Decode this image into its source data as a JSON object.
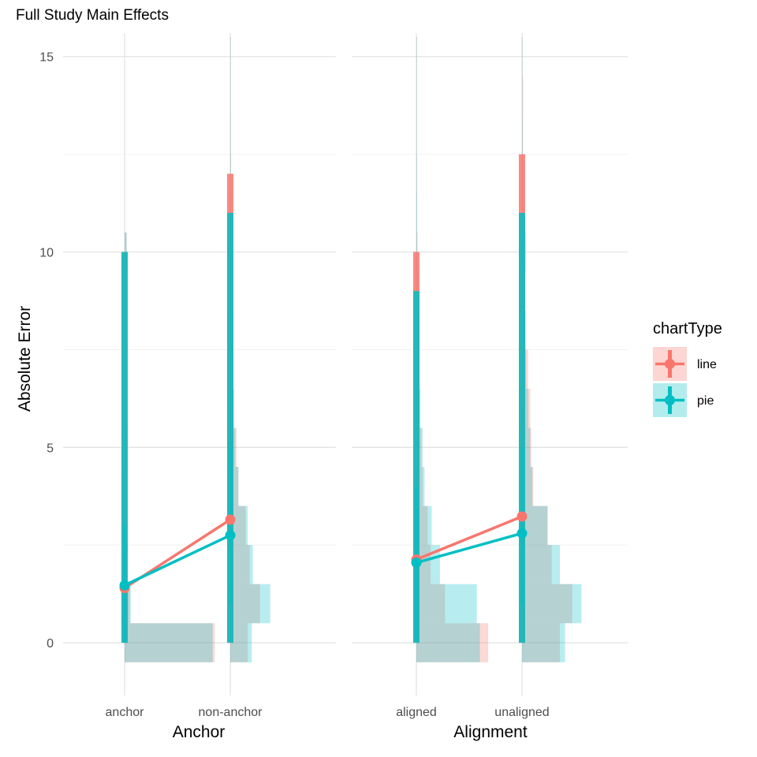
{
  "chart_data": {
    "type": "line",
    "title": "Full Study Main Effects",
    "ylabel": "Absolute Error",
    "ylim": [
      -1.35,
      15.6
    ],
    "yticks": [
      0,
      5,
      10,
      15
    ],
    "legend": {
      "title": "chartType",
      "placement": "right",
      "entries": [
        {
          "label": "line",
          "color": "#F8766D"
        },
        {
          "label": "pie",
          "color": "#00BFC4"
        }
      ]
    },
    "series": [
      {
        "name": "line",
        "color": "#F8766D"
      },
      {
        "name": "pie",
        "color": "#00BFC4"
      }
    ],
    "grid": true,
    "panels": [
      {
        "xlabel": "Anchor",
        "categories": [
          "anchor",
          "non-anchor"
        ],
        "means": {
          "line": [
            1.4,
            3.15
          ],
          "pie": [
            1.47,
            2.75
          ]
        },
        "intervals": {
          "line": [
            {
              "outer": [
                0,
                10
              ],
              "inner": [
                0,
                3
              ]
            },
            {
              "outer": [
                0,
                12
              ],
              "inner": [
                1,
                6
              ]
            }
          ],
          "pie": [
            {
              "outer": [
                0,
                10
              ],
              "inner": [
                0,
                3
              ]
            },
            {
              "outer": [
                0,
                11
              ],
              "inner": [
                1,
                5
              ]
            }
          ]
        },
        "histograms": {
          "bin_centers": [
            0,
            1,
            2,
            3,
            4,
            5,
            6,
            7,
            8,
            9,
            10,
            11,
            12,
            13,
            14,
            15
          ],
          "line": [
            [
              0.88,
              0.05,
              0.02,
              0.01,
              0.005,
              0.015,
              0,
              0,
              0,
              0,
              0.02,
              0,
              0,
              0,
              0,
              0
            ],
            [
              0.17,
              0.29,
              0.19,
              0.15,
              0.08,
              0.06,
              0.04,
              0.03,
              0.02,
              0.015,
              0.015,
              0.01,
              0.008,
              0.006,
              0.004,
              0.002
            ]
          ],
          "pie": [
            [
              0.86,
              0.06,
              0.03,
              0.01,
              0.005,
              0.015,
              0,
              0,
              0,
              0,
              0.02,
              0,
              0,
              0,
              0,
              0
            ],
            [
              0.21,
              0.39,
              0.22,
              0.17,
              0.08,
              0.05,
              0.03,
              0.02,
              0.015,
              0.01,
              0.01,
              0.008,
              0.006,
              0.004,
              0.003,
              0.002
            ]
          ]
        }
      },
      {
        "xlabel": "Alignment",
        "categories": [
          "aligned",
          "unaligned"
        ],
        "means": {
          "line": [
            2.13,
            3.23
          ],
          "pie": [
            2.05,
            2.8
          ]
        },
        "intervals": {
          "line": [
            {
              "outer": [
                0,
                10
              ],
              "inner": [
                0,
                4
              ]
            },
            {
              "outer": [
                0,
                12.5
              ],
              "inner": [
                1,
                6
              ]
            }
          ],
          "pie": [
            {
              "outer": [
                0,
                9
              ],
              "inner": [
                0,
                4
              ]
            },
            {
              "outer": [
                0,
                11
              ],
              "inner": [
                1,
                5
              ]
            }
          ]
        },
        "histograms": {
          "bin_centers": [
            0,
            1,
            2,
            3,
            4,
            5,
            6,
            7,
            8,
            9,
            10,
            11,
            12,
            13,
            14,
            15
          ],
          "line": [
            [
              0.7,
              0.28,
              0.14,
              0.11,
              0.06,
              0.05,
              0.03,
              0.02,
              0.03,
              0.01,
              0.01,
              0.005,
              0.005,
              0.005,
              0.005,
              0.005
            ],
            [
              0.37,
              0.49,
              0.29,
              0.25,
              0.11,
              0.09,
              0.08,
              0.06,
              0.04,
              0.03,
              0.04,
              0.02,
              0.015,
              0.01,
              0.01,
              0.005
            ]
          ],
          "pie": [
            [
              0.62,
              0.59,
              0.23,
              0.15,
              0.08,
              0.06,
              0.04,
              0.03,
              0.025,
              0.015,
              0.01,
              0.008,
              0.006,
              0.004,
              0.003,
              0.002
            ],
            [
              0.42,
              0.58,
              0.37,
              0.25,
              0.1,
              0.08,
              0.06,
              0.04,
              0.03,
              0.02,
              0.015,
              0.01,
              0.008,
              0.006,
              0.004,
              0.002
            ]
          ]
        }
      }
    ]
  }
}
